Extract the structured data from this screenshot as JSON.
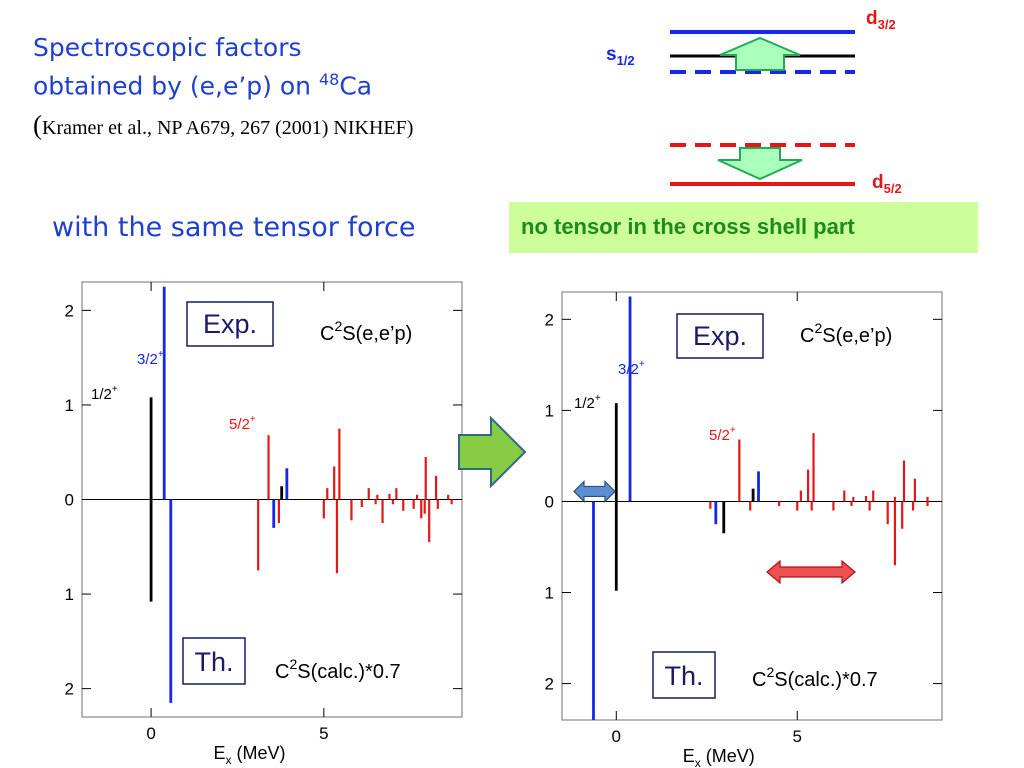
{
  "slide": {
    "title_line1": "Spectroscopic factors",
    "title_line2_prefix": "obtained by (e,e’p)  on ",
    "title_mass": "48",
    "title_element": "Ca",
    "reference_open": "(",
    "reference_text": "Kramer et al., NP A679, 267 (2001) NIKHEF)",
    "left_caption": "with the same tensor force",
    "right_caption": "no tensor in the cross shell part"
  },
  "level_diagram": {
    "d32": {
      "letter": "d",
      "sub": "3/2"
    },
    "s12": {
      "letter": "s",
      "sub": "1/2"
    },
    "d52": {
      "letter": "d",
      "sub": "5/2"
    },
    "colors": {
      "blue": "#1428e6",
      "red": "#e51616",
      "black": "#000000",
      "arrow_fill": "#aaffbb",
      "arrow_stroke": "#22aa55"
    }
  },
  "colors": {
    "exp_label": "#1a1a66",
    "black": "#000000",
    "blue": "#1428e6",
    "red": "#e51616",
    "big_arrow_fill": "#88cc44",
    "big_arrow_stroke": "#2d6a8a",
    "dbl_arrow_blue": "#5b8fd2",
    "dbl_arrow_red": "#f05050"
  },
  "chart_data": [
    {
      "type": "bar",
      "xlabel": "E",
      "xlabel_sub": "x",
      "xlabel_unit": " (MeV)",
      "xlim": [
        -2,
        9
      ],
      "ylim": [
        -2.3,
        2.3
      ],
      "x_ticks": [
        "0",
        "5"
      ],
      "y_ticks_top": [
        "2",
        "1",
        "0"
      ],
      "y_ticks_bottom": [
        "1",
        "2"
      ],
      "exp_box": "Exp.",
      "th_box": "Th.",
      "exp_formula_pre": "C",
      "exp_formula_sup": "2",
      "exp_formula_post": "S(e,e’p)",
      "th_formula_pre": "C",
      "th_formula_sup": "2",
      "th_formula_post": "S(calc.)*0.7",
      "state_labels": [
        {
          "base": "1/2",
          "sup": "+",
          "color": "black"
        },
        {
          "base": "3/2",
          "sup": "+",
          "color": "blue"
        },
        {
          "base": "5/2",
          "sup": "+",
          "color": "red"
        }
      ],
      "series": [
        {
          "name": "1/2+",
          "color": "black",
          "exp": [
            {
              "x": 0.0,
              "y": 1.08
            },
            {
              "x": 3.78,
              "y": 0.14
            }
          ],
          "th": [
            {
              "x": 0.0,
              "y": -1.08
            }
          ]
        },
        {
          "name": "3/2+",
          "color": "blue",
          "exp": [
            {
              "x": 0.38,
              "y": 2.25
            },
            {
              "x": 3.93,
              "y": 0.33
            }
          ],
          "th": [
            {
              "x": 0.57,
              "y": -2.15
            },
            {
              "x": 3.55,
              "y": -0.3
            }
          ]
        },
        {
          "name": "5/2+",
          "color": "red",
          "exp": [
            {
              "x": 3.4,
              "y": 0.68
            },
            {
              "x": 5.45,
              "y": 0.75
            },
            {
              "x": 5.1,
              "y": 0.12
            },
            {
              "x": 5.3,
              "y": 0.35
            },
            {
              "x": 6.3,
              "y": 0.12
            },
            {
              "x": 6.55,
              "y": 0.05
            },
            {
              "x": 6.9,
              "y": 0.06
            },
            {
              "x": 7.1,
              "y": 0.12
            },
            {
              "x": 7.7,
              "y": 0.05
            },
            {
              "x": 7.95,
              "y": 0.45
            },
            {
              "x": 8.25,
              "y": 0.25
            },
            {
              "x": 8.6,
              "y": 0.05
            }
          ],
          "th": [
            {
              "x": 3.1,
              "y": -0.75
            },
            {
              "x": 3.7,
              "y": -0.25
            },
            {
              "x": 5.0,
              "y": -0.2
            },
            {
              "x": 5.38,
              "y": -0.78
            },
            {
              "x": 5.8,
              "y": -0.22
            },
            {
              "x": 6.1,
              "y": -0.08
            },
            {
              "x": 6.5,
              "y": -0.05
            },
            {
              "x": 6.7,
              "y": -0.25
            },
            {
              "x": 7.0,
              "y": -0.05
            },
            {
              "x": 7.3,
              "y": -0.12
            },
            {
              "x": 7.6,
              "y": -0.1
            },
            {
              "x": 7.82,
              "y": -0.2
            },
            {
              "x": 7.92,
              "y": -0.15
            },
            {
              "x": 8.05,
              "y": -0.45
            },
            {
              "x": 8.3,
              "y": -0.1
            },
            {
              "x": 8.7,
              "y": -0.05
            }
          ]
        }
      ]
    },
    {
      "type": "bar",
      "xlabel": "E",
      "xlabel_sub": "x",
      "xlabel_unit": " (MeV)",
      "xlim": [
        -1.5,
        9
      ],
      "ylim": [
        -2.4,
        2.3
      ],
      "x_ticks": [
        "0",
        "5"
      ],
      "y_ticks_top": [
        "2",
        "1",
        "0"
      ],
      "y_ticks_bottom": [
        "1",
        "2"
      ],
      "exp_box": "Exp.",
      "th_box": "Th.",
      "exp_formula_pre": "C",
      "exp_formula_sup": "2",
      "exp_formula_post": "S(e,e’p)",
      "th_formula_pre": "C",
      "th_formula_sup": "2",
      "th_formula_post": "S(calc.)*0.7",
      "state_labels": [
        {
          "base": "1/2",
          "sup": "+",
          "color": "black"
        },
        {
          "base": "3/2",
          "sup": "+",
          "color": "blue"
        },
        {
          "base": "5/2",
          "sup": "+",
          "color": "red"
        }
      ],
      "series": [
        {
          "name": "1/2+",
          "color": "black",
          "exp": [
            {
              "x": 0.0,
              "y": 1.08
            },
            {
              "x": 3.78,
              "y": 0.14
            }
          ],
          "th": [
            {
              "x": 0.0,
              "y": -0.98
            },
            {
              "x": 2.97,
              "y": -0.35
            }
          ]
        },
        {
          "name": "3/2+",
          "color": "blue",
          "exp": [
            {
              "x": 0.38,
              "y": 2.25
            },
            {
              "x": 3.93,
              "y": 0.33
            }
          ],
          "th": [
            {
              "x": -0.63,
              "y": -2.4
            },
            {
              "x": 2.75,
              "y": -0.25
            }
          ]
        },
        {
          "name": "5/2+",
          "color": "red",
          "exp": [
            {
              "x": 3.4,
              "y": 0.68
            },
            {
              "x": 5.45,
              "y": 0.75
            },
            {
              "x": 5.1,
              "y": 0.12
            },
            {
              "x": 5.3,
              "y": 0.35
            },
            {
              "x": 6.3,
              "y": 0.12
            },
            {
              "x": 6.55,
              "y": 0.05
            },
            {
              "x": 6.9,
              "y": 0.06
            },
            {
              "x": 7.1,
              "y": 0.12
            },
            {
              "x": 7.7,
              "y": 0.05
            },
            {
              "x": 7.95,
              "y": 0.45
            },
            {
              "x": 8.25,
              "y": 0.25
            },
            {
              "x": 8.6,
              "y": 0.05
            }
          ],
          "th": [
            {
              "x": 2.6,
              "y": -0.08
            },
            {
              "x": 3.7,
              "y": -0.1
            },
            {
              "x": 4.5,
              "y": -0.05
            },
            {
              "x": 5.0,
              "y": -0.1
            },
            {
              "x": 5.4,
              "y": -0.1
            },
            {
              "x": 6.0,
              "y": -0.1
            },
            {
              "x": 6.5,
              "y": -0.05
            },
            {
              "x": 7.0,
              "y": -0.1
            },
            {
              "x": 7.5,
              "y": -0.25
            },
            {
              "x": 7.7,
              "y": -0.7
            },
            {
              "x": 7.9,
              "y": -0.3
            },
            {
              "x": 8.2,
              "y": -0.1
            },
            {
              "x": 8.6,
              "y": -0.05
            }
          ]
        }
      ]
    }
  ]
}
